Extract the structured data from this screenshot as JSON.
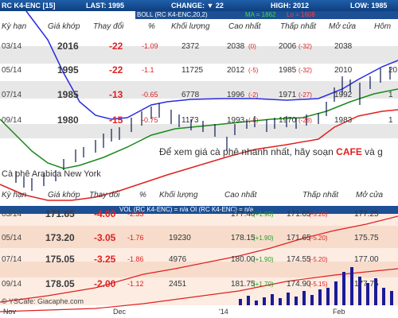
{
  "header": {
    "symbol": "RC K4-ENC [15]",
    "last": "LAST: 1995",
    "change": "CHANGE: ▼ 22",
    "high": "HIGH: 2012",
    "low": "LOW: 1985"
  },
  "indicator": {
    "boll": "BOLL (RC K4-ENC,20,2)",
    "ma": "MA = 1862",
    "lo": "Lo = 1608",
    "vol_label": "VOL (RC K4-ENC) = n/a   OI (RC K4-ENC) = n/a"
  },
  "upper_columns": [
    "Kỳ hạn",
    "Giá khớp",
    "Thay đổi",
    "%",
    "Khối lượng",
    "Cao nhất",
    "Thấp nhất",
    "Mở cửa",
    "Hôm"
  ],
  "upper_rows": [
    {
      "term": "03/14",
      "price": "2016",
      "change": "-22",
      "pct": "-1.09",
      "volume": "2372",
      "high": "2038",
      "high_chg": "(0)",
      "low": "2006",
      "low_chg": "(-32)",
      "open": "2038",
      "prev": ""
    },
    {
      "term": "05/14",
      "price": "1995",
      "change": "-22",
      "pct": "-1.1",
      "volume": "11725",
      "high": "2012",
      "high_chg": "(-5)",
      "low": "1985",
      "low_chg": "(-32)",
      "open": "2010",
      "prev": "20"
    },
    {
      "term": "07/14",
      "price": "1985",
      "change": "-13",
      "pct": "-0.65",
      "volume": "6778",
      "high": "1996",
      "high_chg": "(-2)",
      "low": "1971",
      "low_chg": "(-27)",
      "open": "1992",
      "prev": "1"
    },
    {
      "term": "09/14",
      "price": "1980",
      "change": "-15",
      "pct": "-0.75",
      "volume": "1173",
      "high": "1993",
      "high_chg": "(-5)",
      "low": "1970",
      "low_chg": "(-28)",
      "open": "1983",
      "prev": "1"
    }
  ],
  "promo": {
    "prefix": "Để xem giá cà phê nhanh nhất, hãy soạn ",
    "keyword": "CAFE",
    "suffix": " và g"
  },
  "section_label": "Cà phê Arabica New York",
  "lower_columns": [
    "Kỳ hạn",
    "Giá khớp",
    "Thay đổi",
    "%",
    "Khối lượng",
    "Cao nhất",
    "Thấp nhất",
    "Mở cửa",
    "Hôm"
  ],
  "lower_rows": [
    {
      "term": "03/14",
      "price": "171.65",
      "change": "-4.00",
      "pct": "-2.33",
      "volume": "",
      "high": "177.40",
      "high_chg": "(+1.90)",
      "low": "171.65",
      "low_chg": "(-5.20)",
      "open": "177.25",
      "prev": ""
    },
    {
      "term": "05/14",
      "price": "173.20",
      "change": "-3.05",
      "pct": "-1.76",
      "volume": "19230",
      "high": "178.15",
      "high_chg": "(+1.90)",
      "low": "171.65",
      "low_chg": "(-5.20)",
      "open": "175.75",
      "prev": ""
    },
    {
      "term": "07/14",
      "price": "175.05",
      "change": "-3.25",
      "pct": "-1.86",
      "volume": "4976",
      "high": "180.00",
      "high_chg": "(+1.90)",
      "low": "174.55",
      "low_chg": "(-5.20)",
      "open": "177.00",
      "prev": ""
    },
    {
      "term": "09/14",
      "price": "178.05",
      "change": "-2.00",
      "pct": "-1.12",
      "volume": "2451",
      "high": "181.75",
      "high_chg": "(+1.70)",
      "low": "174.90",
      "low_chg": "(-5.15)",
      "open": "177.75",
      "prev": ""
    }
  ],
  "x_axis": [
    "Nov",
    "Dec",
    "'14",
    "Feb"
  ],
  "watermark": "© YSCafe: Giacaphe.com",
  "colors": {
    "header_blue": "#1d4f95",
    "negative": "#e02020",
    "positive": "#20a020",
    "boll_line": "#2a2ae0",
    "ma_line": "#1a8a1a",
    "lower_line": "#e02020",
    "volume_bar": "#1a1a9a"
  }
}
